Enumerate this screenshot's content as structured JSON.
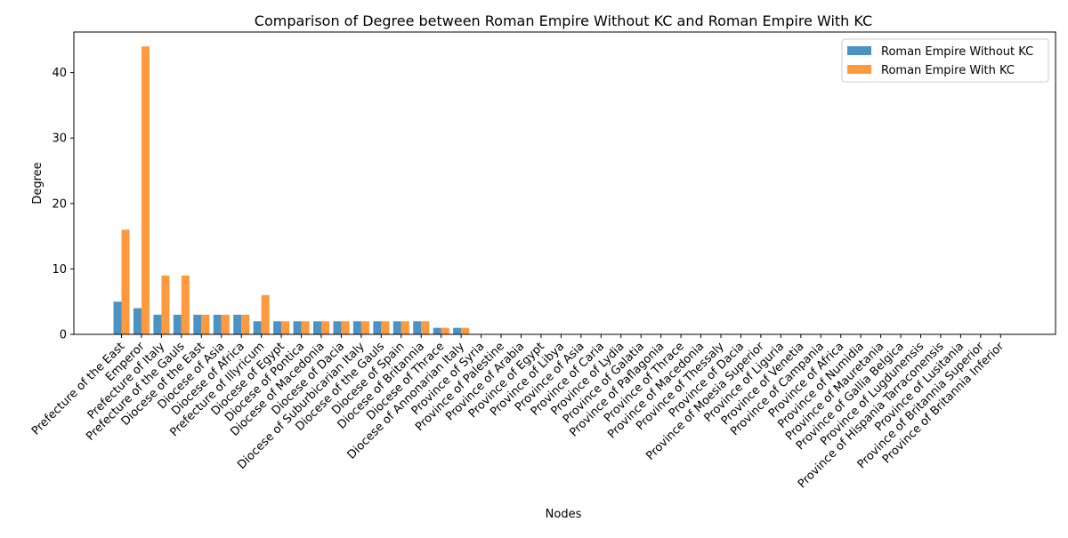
{
  "chart_data": {
    "type": "bar",
    "title": "Comparison of Degree between Roman Empire Without KC and Roman Empire With KC",
    "xlabel": "Nodes",
    "ylabel": "Degree",
    "ylim": [
      0,
      46.2
    ],
    "yticks": [
      0,
      10,
      20,
      30,
      40
    ],
    "grid": false,
    "legend_position": "top-right",
    "categories": [
      "Prefecture of the East",
      "Emperor",
      "Prefecture of Italy",
      "Prefecture of the Gauls",
      "Diocese of the East",
      "Diocese of Asia",
      "Diocese of Africa",
      "Prefecture of Illyricum",
      "Diocese of Egypt",
      "Diocese of Pontica",
      "Diocese of Macedonia",
      "Diocese of Dacia",
      "Diocese of Suburbicarian Italy",
      "Diocese of the Gauls",
      "Diocese of Spain",
      "Diocese of Britannia",
      "Diocese of Thrace",
      "Diocese of Annonarian Italy",
      "Province of Syria",
      "Province of Palestine",
      "Province of Arabia",
      "Province of Egypt",
      "Province of Libya",
      "Province of Asia",
      "Province of Caria",
      "Province of Lydia",
      "Province of Galatia",
      "Province of Paflagonia",
      "Province of Thrace",
      "Province of Macedonia",
      "Province of Thessaly",
      "Province of Dacia",
      "Province of Moesia Superior",
      "Province of Liguria",
      "Province of Venetia",
      "Province of Campania",
      "Province of Africa",
      "Province of Numidia",
      "Province of Mauretania",
      "Province of Gallia Belgica",
      "Province of Lugdunensis",
      "Province of Hispania Tarraconensis",
      "Province of Lusitania",
      "Province of Britannia Superior",
      "Province of Britannia Inferior"
    ],
    "series": [
      {
        "name": "Roman Empire Without KC",
        "color": "#1f77b4",
        "values": [
          5,
          4,
          3,
          3,
          3,
          3,
          3,
          2,
          2,
          2,
          2,
          2,
          2,
          2,
          2,
          2,
          1,
          1,
          0,
          0,
          0,
          0,
          0,
          0,
          0,
          0,
          0,
          0,
          0,
          0,
          0,
          0,
          0,
          0,
          0,
          0,
          0,
          0,
          0,
          0,
          0,
          0,
          0,
          0,
          0
        ]
      },
      {
        "name": "Roman Empire With KC",
        "color": "#ff7f0e",
        "values": [
          16,
          44,
          9,
          9,
          3,
          3,
          3,
          6,
          2,
          2,
          2,
          2,
          2,
          2,
          2,
          2,
          1,
          1,
          0,
          0,
          0,
          0,
          0,
          0,
          0,
          0,
          0,
          0,
          0,
          0,
          0,
          0,
          0,
          0,
          0,
          0,
          0,
          0,
          0,
          0,
          0,
          0,
          0,
          0,
          0
        ]
      }
    ]
  }
}
